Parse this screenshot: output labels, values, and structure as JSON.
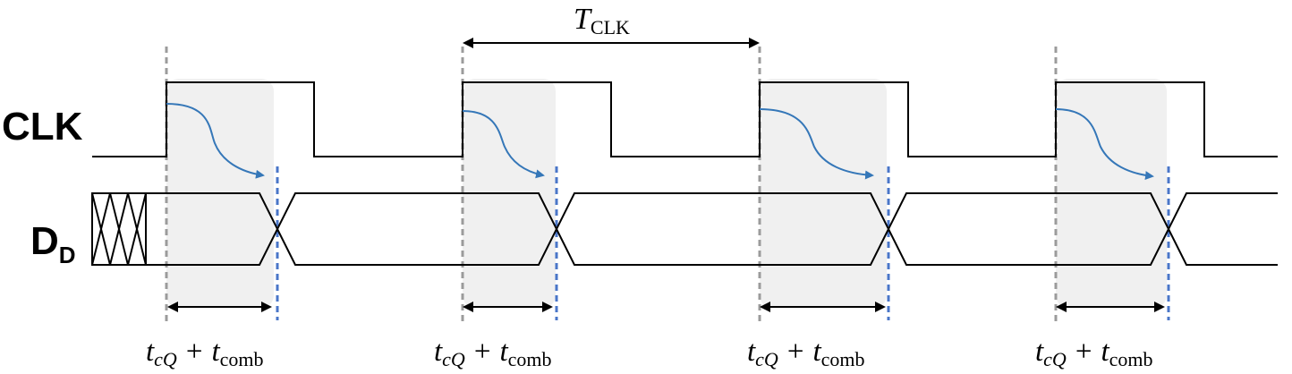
{
  "signals": {
    "clk": {
      "label": "CLK"
    },
    "data": {
      "label": "D",
      "subscript": "D"
    }
  },
  "period": {
    "symbol": "T",
    "subscript": "CLK"
  },
  "delay": {
    "t1": "t",
    "t1_sub": "cQ",
    "plus": "+",
    "t2": "t",
    "t2_sub": "comb"
  },
  "colors": {
    "shade": "#f0f0f0",
    "clock_edge_guide": "#9b9b9b",
    "data_transition_guide": "#4a76c8",
    "propagation_arrow": "#3577b8",
    "waveform": "#000000"
  },
  "edges_count": 4
}
